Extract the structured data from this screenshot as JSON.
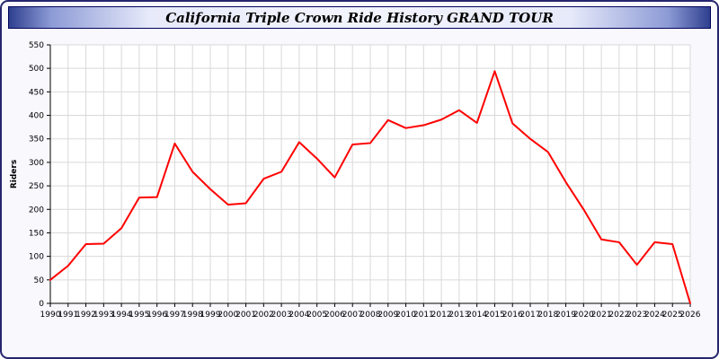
{
  "header": {
    "title": "California Triple Crown Ride History GRAND TOUR"
  },
  "chart_data": {
    "type": "line",
    "title": "California Triple Crown Ride History GRAND TOUR",
    "xlabel": "",
    "ylabel": "Riders",
    "ylim": [
      0,
      550
    ],
    "ytick": 50,
    "grid": true,
    "legend": "none",
    "x": [
      1990,
      1991,
      1992,
      1993,
      1994,
      1995,
      1996,
      1997,
      1998,
      1999,
      2000,
      2001,
      2002,
      2003,
      2004,
      2005,
      2006,
      2007,
      2008,
      2009,
      2010,
      2011,
      2012,
      2013,
      2014,
      2015,
      2016,
      2017,
      2018,
      2019,
      2020,
      2021,
      2022,
      2023,
      2024,
      2025,
      2026
    ],
    "series": [
      {
        "name": "Riders",
        "values": [
          50,
          80,
          126,
          127,
          160,
          225,
          226,
          340,
          280,
          243,
          210,
          213,
          265,
          280,
          343,
          308,
          268,
          338,
          341,
          390,
          373,
          379,
          391,
          411,
          384,
          494,
          383,
          350,
          322,
          258,
          200,
          136,
          130,
          82,
          130,
          126,
          0
        ]
      }
    ],
    "colors": {
      "line": "#ff0000",
      "grid": "#d9d9d9",
      "plot_bg": "#ffffff",
      "axis": "#000000",
      "page_bg": "#f8f8fd"
    }
  }
}
